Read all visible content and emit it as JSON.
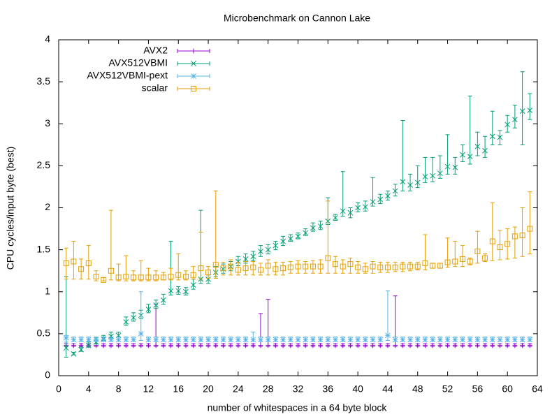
{
  "chart_data": {
    "type": "errorbar",
    "title": "Microbenchmark on Cannon Lake",
    "x_label": "number of whitespaces in a 64 byte block",
    "y_label": "CPU cycles/input byte (best)",
    "xlim": [
      0,
      64
    ],
    "ylim": [
      0,
      4
    ],
    "xticks": [
      0,
      4,
      8,
      12,
      16,
      20,
      24,
      28,
      32,
      36,
      40,
      44,
      48,
      52,
      56,
      60,
      64
    ],
    "yticks": [
      0,
      0.5,
      1,
      1.5,
      2,
      2.5,
      3,
      3.5,
      4
    ],
    "legend": "top left",
    "x": [
      1,
      2,
      3,
      4,
      5,
      6,
      7,
      8,
      9,
      10,
      11,
      12,
      13,
      14,
      15,
      16,
      17,
      18,
      19,
      20,
      21,
      22,
      23,
      24,
      25,
      26,
      27,
      28,
      29,
      30,
      31,
      32,
      33,
      34,
      35,
      36,
      37,
      38,
      39,
      40,
      41,
      42,
      43,
      44,
      45,
      46,
      47,
      48,
      49,
      50,
      51,
      52,
      53,
      54,
      55,
      56,
      57,
      58,
      59,
      60,
      61,
      62,
      63
    ],
    "series": [
      {
        "name": "AVX2",
        "color": "#9400d3",
        "marker": "plus",
        "values": [
          0.36,
          0.36,
          0.36,
          0.36,
          0.36,
          0.36,
          0.36,
          0.36,
          0.36,
          0.36,
          0.36,
          0.36,
          0.36,
          0.36,
          0.36,
          0.36,
          0.36,
          0.36,
          0.36,
          0.36,
          0.36,
          0.36,
          0.36,
          0.36,
          0.36,
          0.36,
          0.36,
          0.36,
          0.36,
          0.36,
          0.36,
          0.36,
          0.36,
          0.36,
          0.36,
          0.36,
          0.36,
          0.36,
          0.36,
          0.36,
          0.36,
          0.36,
          0.36,
          0.36,
          0.36,
          0.36,
          0.36,
          0.36,
          0.36,
          0.36,
          0.36,
          0.36,
          0.36,
          0.36,
          0.36,
          0.36,
          0.36,
          0.36,
          0.36,
          0.36,
          0.36,
          0.36,
          0.36
        ],
        "lows": [
          0.35,
          0.35,
          0.35,
          0.35,
          0.35,
          0.35,
          0.35,
          0.35,
          0.35,
          0.35,
          0.35,
          0.35,
          0.35,
          0.35,
          0.35,
          0.35,
          0.35,
          0.35,
          0.35,
          0.35,
          0.35,
          0.35,
          0.35,
          0.35,
          0.35,
          0.35,
          0.35,
          0.35,
          0.35,
          0.35,
          0.35,
          0.35,
          0.35,
          0.35,
          0.35,
          0.35,
          0.35,
          0.35,
          0.35,
          0.35,
          0.35,
          0.35,
          0.35,
          0.35,
          0.35,
          0.35,
          0.35,
          0.35,
          0.35,
          0.35,
          0.35,
          0.35,
          0.35,
          0.35,
          0.35,
          0.35,
          0.35,
          0.35,
          0.35,
          0.35,
          0.35,
          0.35,
          0.35
        ],
        "highs": [
          0.38,
          0.38,
          0.38,
          0.38,
          0.38,
          0.38,
          0.38,
          0.38,
          0.38,
          0.38,
          0.38,
          0.38,
          0.85,
          0.38,
          0.38,
          0.38,
          0.38,
          0.38,
          0.38,
          0.38,
          0.38,
          0.38,
          0.38,
          0.38,
          0.38,
          0.38,
          0.74,
          0.91,
          0.38,
          0.38,
          0.38,
          0.38,
          0.38,
          0.38,
          0.38,
          0.38,
          0.38,
          0.38,
          0.38,
          0.38,
          0.38,
          0.38,
          0.38,
          0.38,
          0.95,
          0.38,
          0.38,
          0.38,
          0.38,
          0.38,
          0.38,
          0.38,
          0.38,
          0.38,
          0.38,
          0.38,
          0.38,
          0.38,
          0.38,
          0.38,
          0.38,
          0.38,
          0.38
        ]
      },
      {
        "name": "AVX512VBMI",
        "color": "#009e73",
        "marker": "cross",
        "values": [
          0.33,
          0.26,
          0.31,
          0.36,
          0.4,
          0.44,
          0.47,
          0.48,
          0.64,
          0.69,
          0.72,
          0.79,
          0.84,
          0.9,
          1.01,
          1.01,
          1.0,
          1.08,
          1.15,
          1.15,
          1.23,
          1.27,
          1.3,
          1.36,
          1.39,
          1.42,
          1.48,
          1.5,
          1.55,
          1.6,
          1.63,
          1.66,
          1.7,
          1.76,
          1.78,
          1.84,
          1.88,
          1.96,
          1.94,
          2.0,
          2.01,
          2.07,
          2.1,
          2.14,
          2.2,
          2.31,
          2.27,
          2.3,
          2.37,
          2.38,
          2.41,
          2.49,
          2.48,
          2.63,
          2.61,
          2.73,
          2.68,
          2.85,
          2.84,
          2.99,
          3.05,
          3.15,
          3.16
        ],
        "lows": [
          0.22,
          0.25,
          0.29,
          0.34,
          0.38,
          0.42,
          0.45,
          0.46,
          0.6,
          0.65,
          0.68,
          0.75,
          0.8,
          0.85,
          0.96,
          0.97,
          0.96,
          1.03,
          1.1,
          1.1,
          1.18,
          1.22,
          1.25,
          1.31,
          1.34,
          1.37,
          1.42,
          1.45,
          1.5,
          1.55,
          1.6,
          1.63,
          1.67,
          1.72,
          1.74,
          1.8,
          1.85,
          1.9,
          1.88,
          1.95,
          1.96,
          2.02,
          2.05,
          2.09,
          2.14,
          2.2,
          2.2,
          2.24,
          2.3,
          2.31,
          2.35,
          2.4,
          2.4,
          2.55,
          2.52,
          2.62,
          2.6,
          2.75,
          2.75,
          2.9,
          2.95,
          2.75,
          3.05
        ],
        "highs": [
          1.18,
          0.28,
          0.34,
          0.4,
          0.45,
          0.48,
          0.52,
          0.52,
          0.7,
          0.75,
          0.78,
          0.85,
          0.9,
          0.97,
          1.6,
          1.06,
          1.05,
          1.15,
          1.97,
          1.2,
          1.3,
          1.33,
          1.36,
          1.42,
          1.45,
          1.48,
          1.55,
          1.56,
          1.6,
          1.66,
          1.68,
          1.7,
          1.75,
          1.82,
          1.84,
          2.12,
          1.92,
          2.43,
          2.0,
          2.06,
          2.08,
          2.36,
          2.16,
          2.2,
          2.28,
          3.04,
          2.4,
          2.5,
          2.6,
          2.6,
          2.62,
          2.87,
          2.6,
          2.75,
          3.33,
          2.9,
          2.85,
          3.15,
          2.92,
          3.1,
          3.22,
          3.62,
          3.36
        ]
      },
      {
        "name": "AVX512VBMI-pext",
        "color": "#56b4e9",
        "marker": "star",
        "values": [
          0.45,
          0.43,
          0.43,
          0.43,
          0.43,
          0.43,
          0.43,
          0.43,
          0.43,
          0.43,
          0.5,
          0.43,
          0.43,
          0.43,
          0.43,
          0.43,
          0.43,
          0.43,
          0.43,
          0.43,
          0.43,
          0.43,
          0.43,
          0.43,
          0.43,
          0.43,
          0.43,
          0.43,
          0.43,
          0.43,
          0.43,
          0.43,
          0.43,
          0.43,
          0.43,
          0.43,
          0.43,
          0.43,
          0.43,
          0.43,
          0.43,
          0.43,
          0.43,
          0.48,
          0.43,
          0.43,
          0.43,
          0.43,
          0.43,
          0.43,
          0.43,
          0.43,
          0.43,
          0.43,
          0.43,
          0.43,
          0.43,
          0.43,
          0.43,
          0.43,
          0.43,
          0.43,
          0.43
        ],
        "lows": [
          0.4,
          0.41,
          0.41,
          0.41,
          0.41,
          0.41,
          0.41,
          0.41,
          0.41,
          0.41,
          0.42,
          0.41,
          0.41,
          0.41,
          0.41,
          0.41,
          0.41,
          0.41,
          0.41,
          0.41,
          0.41,
          0.41,
          0.41,
          0.41,
          0.41,
          0.41,
          0.41,
          0.41,
          0.41,
          0.41,
          0.41,
          0.41,
          0.41,
          0.41,
          0.41,
          0.41,
          0.41,
          0.41,
          0.41,
          0.41,
          0.41,
          0.41,
          0.41,
          0.42,
          0.41,
          0.41,
          0.41,
          0.41,
          0.41,
          0.41,
          0.41,
          0.41,
          0.41,
          0.41,
          0.41,
          0.41,
          0.41,
          0.41,
          0.41,
          0.41,
          0.41,
          0.41,
          0.41
        ],
        "highs": [
          0.48,
          0.46,
          0.46,
          0.46,
          0.46,
          0.46,
          0.46,
          0.46,
          0.46,
          0.46,
          1.0,
          0.46,
          0.46,
          0.46,
          0.46,
          0.46,
          0.46,
          0.46,
          0.46,
          0.46,
          0.46,
          0.46,
          0.46,
          0.46,
          0.46,
          0.52,
          0.46,
          0.46,
          0.46,
          0.46,
          0.46,
          0.46,
          0.46,
          0.46,
          0.46,
          0.46,
          0.46,
          0.46,
          0.46,
          0.46,
          0.46,
          0.46,
          0.46,
          1.01,
          0.46,
          0.46,
          0.46,
          0.46,
          0.46,
          0.46,
          0.46,
          0.46,
          0.46,
          0.46,
          0.46,
          0.46,
          0.46,
          0.46,
          0.46,
          0.46,
          0.46,
          0.46,
          0.46
        ]
      },
      {
        "name": "scalar",
        "color": "#e69f00",
        "marker": "square",
        "values": [
          1.34,
          1.36,
          1.27,
          1.34,
          1.18,
          1.14,
          1.25,
          1.17,
          1.18,
          1.17,
          1.17,
          1.17,
          1.17,
          1.17,
          1.18,
          1.2,
          1.18,
          1.2,
          1.28,
          1.23,
          1.32,
          1.28,
          1.3,
          1.26,
          1.28,
          1.29,
          1.26,
          1.31,
          1.27,
          1.28,
          1.29,
          1.3,
          1.3,
          1.3,
          1.3,
          1.4,
          1.33,
          1.3,
          1.33,
          1.29,
          1.27,
          1.3,
          1.29,
          1.29,
          1.29,
          1.3,
          1.3,
          1.3,
          1.34,
          1.31,
          1.31,
          1.35,
          1.36,
          1.39,
          1.36,
          1.48,
          1.4,
          1.6,
          1.53,
          1.57,
          1.66,
          1.67,
          1.75
        ],
        "lows": [
          1.15,
          1.15,
          1.15,
          1.15,
          1.13,
          1.13,
          1.14,
          1.13,
          1.13,
          1.13,
          1.13,
          1.13,
          1.13,
          1.14,
          1.14,
          1.14,
          1.14,
          1.15,
          1.15,
          1.16,
          1.16,
          1.2,
          1.2,
          1.2,
          1.2,
          1.2,
          1.2,
          1.2,
          1.2,
          1.2,
          1.22,
          1.22,
          1.22,
          1.22,
          1.22,
          1.22,
          1.22,
          1.22,
          1.22,
          1.22,
          1.22,
          1.22,
          1.23,
          1.23,
          1.24,
          1.24,
          1.25,
          1.26,
          1.26,
          1.28,
          1.28,
          1.29,
          1.3,
          1.3,
          1.32,
          1.34,
          1.36,
          1.37,
          1.38,
          1.39,
          1.4,
          1.42,
          1.45
        ],
        "highs": [
          1.52,
          1.6,
          1.39,
          1.55,
          1.25,
          1.17,
          1.97,
          1.33,
          1.43,
          1.25,
          1.37,
          1.28,
          1.25,
          1.23,
          1.28,
          1.45,
          1.25,
          1.3,
          1.71,
          1.3,
          2.2,
          1.35,
          1.38,
          1.35,
          1.36,
          1.36,
          1.34,
          1.38,
          1.35,
          1.35,
          1.36,
          1.37,
          1.36,
          1.37,
          1.38,
          2.08,
          1.42,
          1.38,
          1.4,
          1.36,
          1.34,
          1.36,
          1.35,
          1.35,
          1.35,
          1.35,
          1.35,
          1.35,
          1.68,
          1.34,
          1.34,
          1.64,
          1.6,
          1.55,
          1.4,
          1.72,
          1.45,
          2.06,
          1.73,
          1.75,
          1.77,
          2.0,
          2.19
        ]
      }
    ]
  }
}
